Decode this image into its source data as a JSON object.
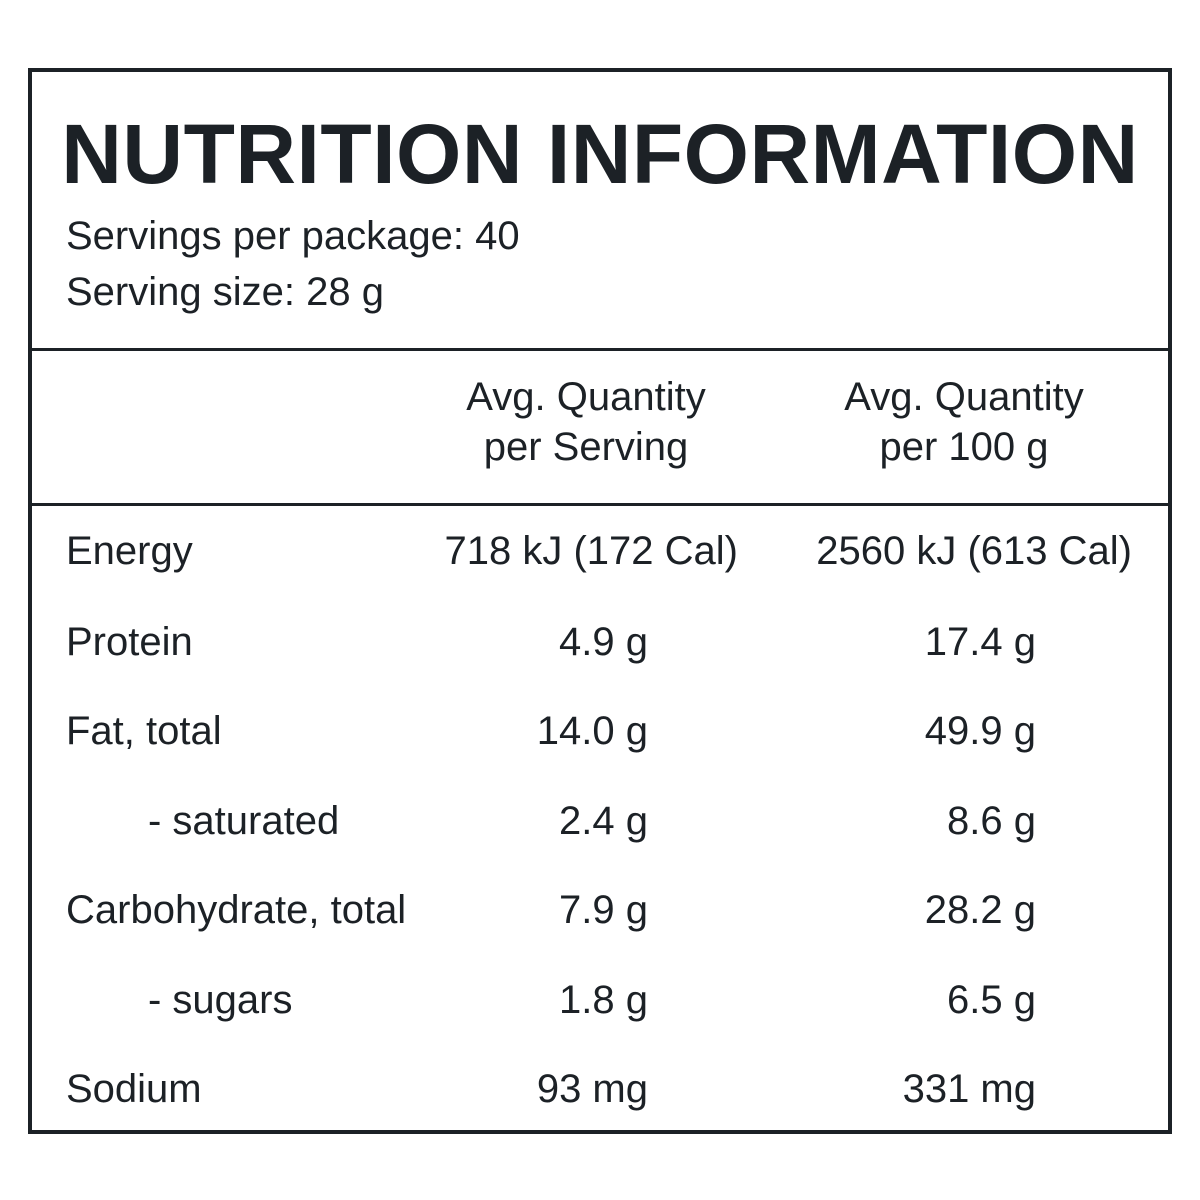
{
  "panel": {
    "title": "NUTRITION INFORMATION",
    "servings_per_package": "Servings per package: 40",
    "serving_size": "Serving size: 28 g"
  },
  "columns": {
    "per_serving": "Avg. Quantity\nper Serving",
    "per_100g": "Avg. Quantity\nper 100 g"
  },
  "rows": [
    {
      "label": "Energy",
      "per_serving": "718 kJ (172 Cal)",
      "per_100g": "2560 kJ (613 Cal)"
    },
    {
      "label": "Protein",
      "per_serving": "4.9 g",
      "per_100g": "17.4 g"
    },
    {
      "label": "Fat, total",
      "per_serving": "14.0 g",
      "per_100g": "49.9 g"
    },
    {
      "label": "- saturated",
      "per_serving": "2.4 g",
      "per_100g": "8.6 g"
    },
    {
      "label": "Carbohydrate, total",
      "per_serving": "7.9 g",
      "per_100g": "28.2 g"
    },
    {
      "label": "- sugars",
      "per_serving": "1.8 g",
      "per_100g": "6.5 g"
    },
    {
      "label": "Sodium",
      "per_serving": "93 mg",
      "per_100g": "331 mg"
    }
  ],
  "colors": {
    "ink": "#1c2126",
    "background": "#ffffff"
  }
}
